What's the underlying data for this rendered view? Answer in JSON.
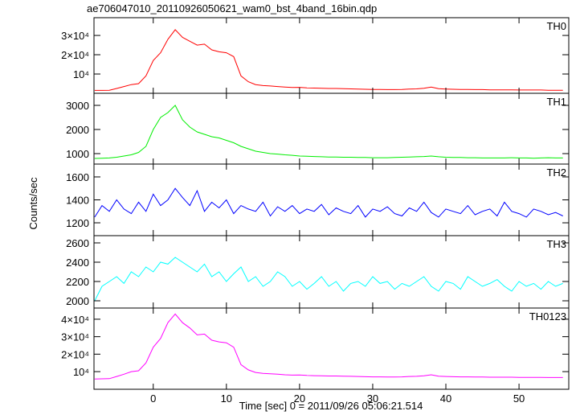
{
  "chart_data": {
    "type": "line",
    "title": "ae706047010_20110926050621_wam0_bst_4band_16bin.qdp",
    "xlabel": "Time [sec] 0 = 2011/09/26 05:06:21.514",
    "ylabel": "Counts/sec",
    "xlim": [
      -8.1,
      56.8
    ],
    "xticks": [
      0,
      10,
      20,
      30,
      40,
      50
    ],
    "x": [
      -8,
      -7,
      -6,
      -5,
      -4,
      -3,
      -2,
      -1,
      0,
      1,
      2,
      3,
      4,
      5,
      6,
      7,
      8,
      9,
      10,
      11,
      12,
      13,
      14,
      15,
      16,
      17,
      18,
      19,
      20,
      21,
      22,
      23,
      24,
      25,
      26,
      27,
      28,
      29,
      30,
      31,
      32,
      33,
      34,
      35,
      36,
      37,
      38,
      39,
      40,
      41,
      42,
      43,
      44,
      45,
      46,
      47,
      48,
      49,
      50,
      51,
      52,
      53,
      54,
      55,
      56
    ],
    "panels": [
      {
        "name": "TH0",
        "color": "#ff0000",
        "ylim": [
          0,
          39200
        ],
        "yticks": [
          {
            "value": 10000,
            "label": "10⁴"
          },
          {
            "value": 20000,
            "label": "2×10⁴"
          },
          {
            "value": 30000,
            "label": "3×10⁴"
          }
        ],
        "values": [
          1500,
          1500,
          1600,
          2500,
          3500,
          4500,
          5000,
          9000,
          17000,
          21000,
          28000,
          33000,
          29000,
          27000,
          25000,
          25500,
          22500,
          21500,
          21000,
          19000,
          9000,
          6000,
          4500,
          4000,
          3800,
          3500,
          3200,
          3000,
          3100,
          2800,
          2700,
          2600,
          2500,
          2500,
          2400,
          2300,
          2200,
          2100,
          2000,
          2000,
          1900,
          1900,
          2000,
          2200,
          2300,
          2600,
          3200,
          2400,
          2200,
          2100,
          2000,
          2000,
          1900,
          1900,
          1800,
          1800,
          1800,
          1800,
          1700,
          1700,
          1700,
          1700,
          1600,
          1600,
          1600
        ]
      },
      {
        "name": "TH1",
        "color": "#00ee00",
        "ylim": [
          567,
          3500
        ],
        "yticks": [
          1000,
          2000,
          3000
        ],
        "values": [
          800,
          810,
          820,
          850,
          900,
          950,
          1050,
          1300,
          2000,
          2500,
          2700,
          3000,
          2400,
          2100,
          1900,
          1800,
          1700,
          1650,
          1550,
          1450,
          1300,
          1200,
          1100,
          1050,
          1000,
          980,
          950,
          930,
          900,
          890,
          880,
          870,
          860,
          860,
          850,
          850,
          840,
          840,
          830,
          830,
          830,
          840,
          850,
          860,
          870,
          880,
          900,
          870,
          850,
          840,
          840,
          830,
          830,
          820,
          820,
          820,
          820,
          830,
          820,
          820,
          810,
          820,
          830,
          820,
          820
        ]
      },
      {
        "name": "TH2",
        "color": "#0000ff",
        "ylim": [
          1088,
          1712
        ],
        "yticks": [
          1200,
          1400,
          1600
        ],
        "values": [
          1250,
          1350,
          1300,
          1400,
          1320,
          1280,
          1380,
          1300,
          1450,
          1350,
          1400,
          1500,
          1420,
          1350,
          1480,
          1300,
          1380,
          1330,
          1400,
          1280,
          1350,
          1320,
          1300,
          1380,
          1260,
          1340,
          1300,
          1350,
          1280,
          1320,
          1300,
          1360,
          1270,
          1330,
          1300,
          1280,
          1350,
          1250,
          1320,
          1300,
          1340,
          1280,
          1260,
          1330,
          1300,
          1380,
          1290,
          1250,
          1320,
          1300,
          1280,
          1350,
          1270,
          1300,
          1320,
          1260,
          1380,
          1300,
          1280,
          1250,
          1320,
          1300,
          1270,
          1290,
          1260
        ]
      },
      {
        "name": "TH3",
        "color": "#00ffff",
        "ylim": [
          1925,
          2675
        ],
        "yticks": [
          2000,
          2200,
          2400,
          2600
        ],
        "values": [
          2000,
          2150,
          2200,
          2250,
          2180,
          2300,
          2250,
          2350,
          2300,
          2400,
          2380,
          2450,
          2400,
          2350,
          2300,
          2380,
          2250,
          2300,
          2200,
          2280,
          2350,
          2200,
          2250,
          2150,
          2200,
          2300,
          2250,
          2150,
          2200,
          2120,
          2180,
          2250,
          2150,
          2200,
          2100,
          2180,
          2200,
          2150,
          2250,
          2180,
          2200,
          2120,
          2180,
          2150,
          2200,
          2250,
          2150,
          2100,
          2200,
          2180,
          2120,
          2250,
          2200,
          2150,
          2180,
          2220,
          2150,
          2100,
          2200,
          2150,
          2180,
          2120,
          2200,
          2150,
          2180
        ]
      },
      {
        "name": "TH0123",
        "color": "#ff00ff",
        "ylim": [
          -100,
          46400
        ],
        "yticks": [
          {
            "value": 10000,
            "label": "10⁴"
          },
          {
            "value": 20000,
            "label": "2×10⁴"
          },
          {
            "value": 30000,
            "label": "3×10⁴"
          },
          {
            "value": 40000,
            "label": "4×10⁴"
          }
        ],
        "values": [
          5800,
          5900,
          6000,
          7200,
          8500,
          10000,
          10500,
          15000,
          24000,
          29000,
          38000,
          43000,
          38000,
          35000,
          31000,
          31500,
          28000,
          27000,
          26500,
          24000,
          14000,
          11000,
          9500,
          9000,
          8800,
          8500,
          8200,
          8000,
          8100,
          7800,
          7700,
          7600,
          7500,
          7500,
          7400,
          7300,
          7200,
          7100,
          7000,
          7000,
          6900,
          6900,
          7000,
          7200,
          7300,
          7600,
          8200,
          7400,
          7200,
          7100,
          7000,
          7000,
          6900,
          6900,
          6800,
          6800,
          6800,
          6800,
          6700,
          6700,
          6700,
          6700,
          6600,
          6600,
          6600
        ]
      }
    ]
  }
}
